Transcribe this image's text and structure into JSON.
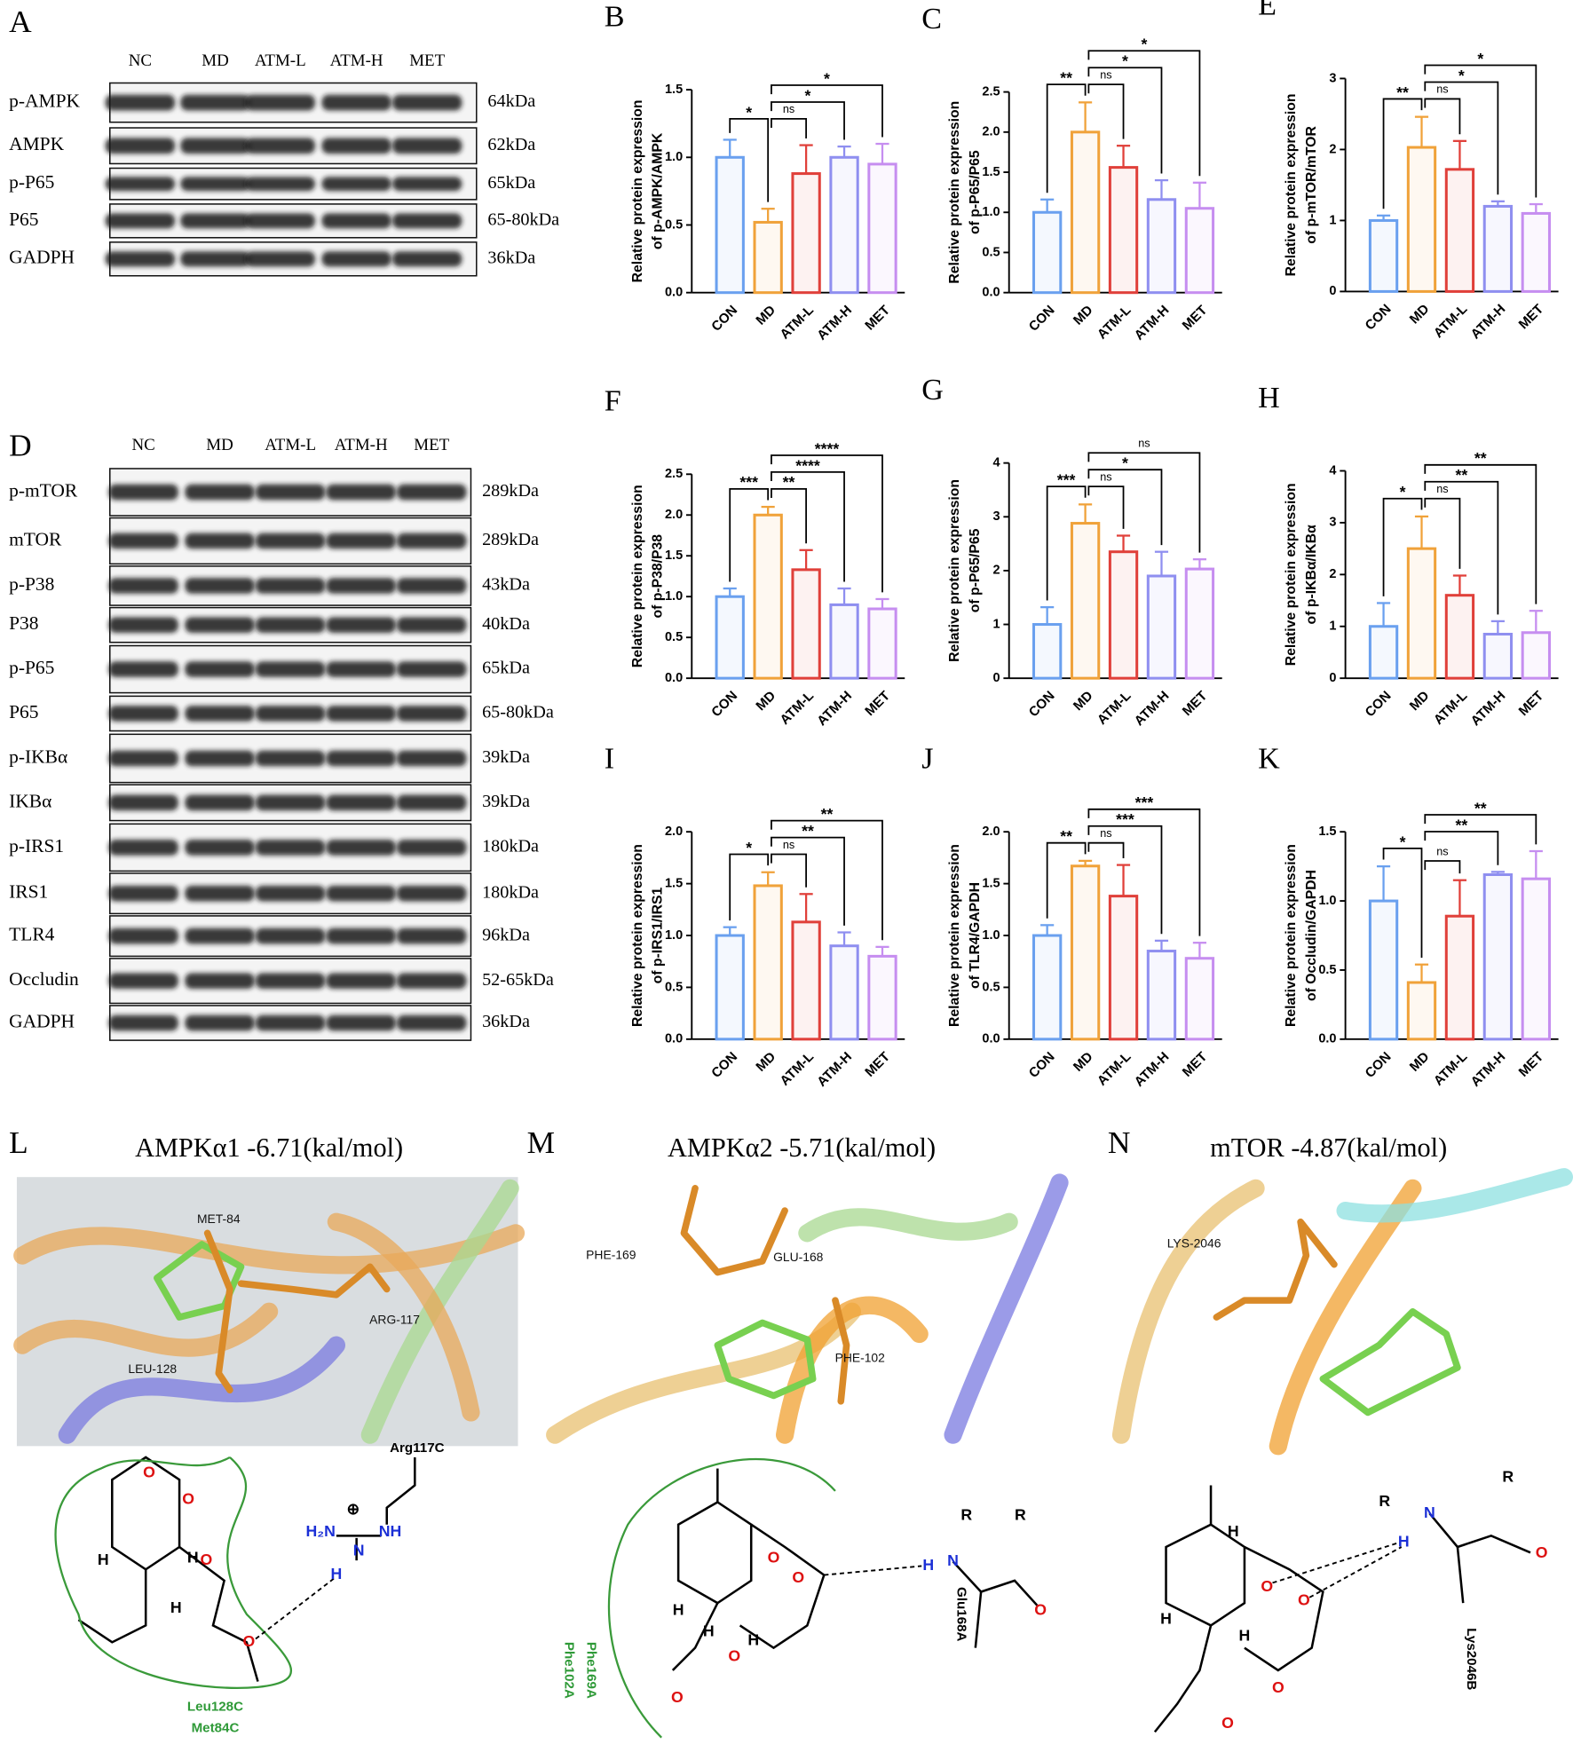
{
  "chart_data": [
    {
      "type": "bar",
      "label": "B",
      "ylabel": [
        "Relative protein expression",
        "of p-AMPK/AMPK"
      ],
      "categories": [
        "CON",
        "MD",
        "ATM-L",
        "ATM-H",
        "MET"
      ],
      "values": [
        1.0,
        0.52,
        0.88,
        1.0,
        0.95
      ],
      "errors": [
        0.13,
        0.1,
        0.21,
        0.08,
        0.15
      ],
      "colors": [
        "#6aa0ef",
        "#f0a23a",
        "#e0403a",
        "#8f8ff0",
        "#c68ef0"
      ],
      "ylim": [
        0,
        1.5
      ],
      "yticks": [
        {
          "value": 0,
          "label": "0.0"
        },
        0.5,
        {
          "value": 1,
          "label": "1.0"
        },
        1.5
      ],
      "comparisons": [
        {
          "pair": [
            "CON",
            "MD"
          ],
          "label": "*"
        },
        {
          "pair": [
            "MD",
            "ATM-L"
          ],
          "label": "ns"
        },
        {
          "pair": [
            "MD",
            "ATM-H"
          ],
          "label": "*"
        },
        {
          "pair": [
            "MD",
            "MET"
          ],
          "label": "*"
        }
      ]
    },
    {
      "type": "bar",
      "label": "C",
      "ylabel": [
        "Relative protein expression",
        "of p-P65/P65"
      ],
      "categories": [
        "CON",
        "MD",
        "ATM-L",
        "ATM-H",
        "MET"
      ],
      "values": [
        1.0,
        2.0,
        1.56,
        1.16,
        1.05
      ],
      "errors": [
        0.16,
        0.37,
        0.27,
        0.24,
        0.32
      ],
      "colors": [
        "#6aa0ef",
        "#f0a23a",
        "#e0403a",
        "#8f8ff0",
        "#c68ef0"
      ],
      "ylim": [
        0,
        2.5
      ],
      "yticks": [
        {
          "value": 0,
          "label": "0.0"
        },
        0.5,
        {
          "value": 1,
          "label": "1.0"
        },
        1.5,
        {
          "value": 2,
          "label": "2.0"
        },
        2.5
      ],
      "comparisons": [
        {
          "pair": [
            "CON",
            "MD"
          ],
          "label": "**"
        },
        {
          "pair": [
            "MD",
            "ATM-L"
          ],
          "label": "ns"
        },
        {
          "pair": [
            "MD",
            "ATM-H"
          ],
          "label": "*"
        },
        {
          "pair": [
            "MD",
            "MET"
          ],
          "label": "*"
        }
      ]
    },
    {
      "type": "bar",
      "label": "E",
      "ylabel": [
        "Relative protein expression",
        "of p-mTOR/mTOR"
      ],
      "categories": [
        "CON",
        "MD",
        "ATM-L",
        "ATM-H",
        "MET"
      ],
      "values": [
        1.0,
        2.03,
        1.72,
        1.2,
        1.1
      ],
      "errors": [
        0.07,
        0.43,
        0.4,
        0.07,
        0.13
      ],
      "colors": [
        "#6aa0ef",
        "#f0a23a",
        "#e0403a",
        "#8f8ff0",
        "#c68ef0"
      ],
      "ylim": [
        0,
        3
      ],
      "yticks": [
        0,
        1,
        2,
        3
      ],
      "comparisons": [
        {
          "pair": [
            "CON",
            "MD"
          ],
          "label": "**"
        },
        {
          "pair": [
            "MD",
            "ATM-L"
          ],
          "label": "ns"
        },
        {
          "pair": [
            "MD",
            "ATM-H"
          ],
          "label": "*"
        },
        {
          "pair": [
            "MD",
            "MET"
          ],
          "label": "*"
        }
      ]
    },
    {
      "type": "bar",
      "label": "F",
      "ylabel": [
        "Relative protein expression",
        "of p-P38/P38"
      ],
      "categories": [
        "CON",
        "MD",
        "ATM-L",
        "ATM-H",
        "MET"
      ],
      "values": [
        1.0,
        2.0,
        1.33,
        0.9,
        0.85
      ],
      "errors": [
        0.1,
        0.1,
        0.24,
        0.2,
        0.12
      ],
      "colors": [
        "#6aa0ef",
        "#f0a23a",
        "#e0403a",
        "#8f8ff0",
        "#c68ef0"
      ],
      "ylim": [
        0,
        2.5
      ],
      "yticks": [
        {
          "value": 0,
          "label": "0.0"
        },
        0.5,
        {
          "value": 1,
          "label": "1.0"
        },
        1.5,
        {
          "value": 2,
          "label": "2.0"
        },
        2.5
      ],
      "comparisons": [
        {
          "pair": [
            "CON",
            "MD"
          ],
          "label": "***"
        },
        {
          "pair": [
            "MD",
            "ATM-L"
          ],
          "label": "**"
        },
        {
          "pair": [
            "MD",
            "ATM-H"
          ],
          "label": "****"
        },
        {
          "pair": [
            "MD",
            "MET"
          ],
          "label": "****"
        }
      ]
    },
    {
      "type": "bar",
      "label": "G",
      "ylabel": [
        "Relative protein expression",
        "of p-P65/P65"
      ],
      "categories": [
        "CON",
        "MD",
        "ATM-L",
        "ATM-H",
        "MET"
      ],
      "values": [
        1.0,
        2.88,
        2.35,
        1.9,
        2.03
      ],
      "errors": [
        0.32,
        0.35,
        0.3,
        0.45,
        0.18
      ],
      "colors": [
        "#6aa0ef",
        "#f0a23a",
        "#e0403a",
        "#8f8ff0",
        "#c68ef0"
      ],
      "ylim": [
        0,
        4
      ],
      "yticks": [
        0,
        1,
        2,
        3,
        4
      ],
      "comparisons": [
        {
          "pair": [
            "CON",
            "MD"
          ],
          "label": "***"
        },
        {
          "pair": [
            "MD",
            "ATM-L"
          ],
          "label": "ns"
        },
        {
          "pair": [
            "MD",
            "ATM-H"
          ],
          "label": "*"
        },
        {
          "pair": [
            "MD",
            "MET"
          ],
          "label": "ns"
        }
      ]
    },
    {
      "type": "bar",
      "label": "H",
      "ylabel": [
        "Relative protein expression",
        "of p-IKBα/IKBα"
      ],
      "categories": [
        "CON",
        "MD",
        "ATM-L",
        "ATM-H",
        "MET"
      ],
      "values": [
        1.0,
        2.5,
        1.6,
        0.85,
        0.88
      ],
      "errors": [
        0.45,
        0.62,
        0.38,
        0.25,
        0.42
      ],
      "colors": [
        "#6aa0ef",
        "#f0a23a",
        "#e0403a",
        "#8f8ff0",
        "#c68ef0"
      ],
      "ylim": [
        0,
        4
      ],
      "yticks": [
        0,
        1,
        2,
        3,
        4
      ],
      "comparisons": [
        {
          "pair": [
            "CON",
            "MD"
          ],
          "label": "*"
        },
        {
          "pair": [
            "MD",
            "ATM-L"
          ],
          "label": "ns"
        },
        {
          "pair": [
            "MD",
            "ATM-H"
          ],
          "label": "**"
        },
        {
          "pair": [
            "MD",
            "MET"
          ],
          "label": "**"
        }
      ]
    },
    {
      "type": "bar",
      "label": "I",
      "ylabel": [
        "Relative protein expression",
        "of p-IRS1/IRS1"
      ],
      "categories": [
        "CON",
        "MD",
        "ATM-L",
        "ATM-H",
        "MET"
      ],
      "values": [
        1.0,
        1.48,
        1.13,
        0.9,
        0.8
      ],
      "errors": [
        0.08,
        0.13,
        0.27,
        0.13,
        0.09
      ],
      "colors": [
        "#6aa0ef",
        "#f0a23a",
        "#e0403a",
        "#8f8ff0",
        "#c68ef0"
      ],
      "ylim": [
        0,
        2
      ],
      "yticks": [
        {
          "value": 0,
          "label": "0.0"
        },
        0.5,
        {
          "value": 1,
          "label": "1.0"
        },
        1.5,
        {
          "value": 2,
          "label": "2.0"
        }
      ],
      "comparisons": [
        {
          "pair": [
            "CON",
            "MD"
          ],
          "label": "*"
        },
        {
          "pair": [
            "MD",
            "ATM-L"
          ],
          "label": "ns"
        },
        {
          "pair": [
            "MD",
            "ATM-H"
          ],
          "label": "**"
        },
        {
          "pair": [
            "MD",
            "MET"
          ],
          "label": "**"
        }
      ]
    },
    {
      "type": "bar",
      "label": "J",
      "ylabel": [
        "Relative protein expression",
        "of TLR4/GAPDH"
      ],
      "categories": [
        "CON",
        "MD",
        "ATM-L",
        "ATM-H",
        "MET"
      ],
      "values": [
        1.0,
        1.67,
        1.38,
        0.85,
        0.78
      ],
      "errors": [
        0.1,
        0.05,
        0.3,
        0.1,
        0.15
      ],
      "colors": [
        "#6aa0ef",
        "#f0a23a",
        "#e0403a",
        "#8f8ff0",
        "#c68ef0"
      ],
      "ylim": [
        0,
        2
      ],
      "yticks": [
        {
          "value": 0,
          "label": "0.0"
        },
        0.5,
        {
          "value": 1,
          "label": "1.0"
        },
        1.5,
        {
          "value": 2,
          "label": "2.0"
        }
      ],
      "comparisons": [
        {
          "pair": [
            "CON",
            "MD"
          ],
          "label": "**"
        },
        {
          "pair": [
            "MD",
            "ATM-L"
          ],
          "label": "ns"
        },
        {
          "pair": [
            "MD",
            "ATM-H"
          ],
          "label": "***"
        },
        {
          "pair": [
            "MD",
            "MET"
          ],
          "label": "***"
        }
      ]
    },
    {
      "type": "bar",
      "label": "K",
      "ylabel": [
        "Relative protein expression",
        "of Occludin/GAPDH"
      ],
      "categories": [
        "CON",
        "MD",
        "ATM-L",
        "ATM-H",
        "MET"
      ],
      "values": [
        1.0,
        0.41,
        0.89,
        1.19,
        1.16
      ],
      "errors": [
        0.25,
        0.13,
        0.26,
        0.02,
        0.2
      ],
      "colors": [
        "#6aa0ef",
        "#f0a23a",
        "#e0403a",
        "#8f8ff0",
        "#c68ef0"
      ],
      "ylim": [
        0,
        1.5
      ],
      "yticks": [
        {
          "value": 0,
          "label": "0.0"
        },
        0.5,
        {
          "value": 1,
          "label": "1.0"
        },
        1.5
      ],
      "comparisons": [
        {
          "pair": [
            "CON",
            "MD"
          ],
          "label": "*"
        },
        {
          "pair": [
            "MD",
            "ATM-L"
          ],
          "label": "ns"
        },
        {
          "pair": [
            "MD",
            "ATM-H"
          ],
          "label": "**"
        },
        {
          "pair": [
            "MD",
            "MET"
          ],
          "label": "**"
        }
      ]
    }
  ],
  "blots": [
    {
      "label": "A",
      "lanes": [
        "NC",
        "MD",
        "ATM-L",
        "ATM-H",
        "MET"
      ],
      "rows": [
        {
          "name": "p-AMPK",
          "size": "64kDa"
        },
        {
          "name": "AMPK",
          "size": "62kDa"
        },
        {
          "name": "p-P65",
          "size": "65kDa"
        },
        {
          "name": "P65",
          "size": "65-80kDa"
        },
        {
          "name": "GADPH",
          "size": "36kDa"
        }
      ]
    },
    {
      "label": "D",
      "lanes": [
        "NC",
        "MD",
        "ATM-L",
        "ATM-H",
        "MET"
      ],
      "rows": [
        {
          "name": "p-mTOR",
          "size": "289kDa"
        },
        {
          "name": "mTOR",
          "size": "289kDa"
        },
        {
          "name": "p-P38",
          "size": "43kDa"
        },
        {
          "name": "P38",
          "size": "40kDa"
        },
        {
          "name": "p-P65",
          "size": "65kDa"
        },
        {
          "name": "P65",
          "size": "65-80kDa"
        },
        {
          "name": "p-IKBα",
          "size": "39kDa"
        },
        {
          "name": "IKBα",
          "size": "39kDa"
        },
        {
          "name": "p-IRS1",
          "size": "180kDa"
        },
        {
          "name": "IRS1",
          "size": "180kDa"
        },
        {
          "name": "TLR4",
          "size": "96kDa"
        },
        {
          "name": "Occludin",
          "size": "52-65kDa"
        },
        {
          "name": "GADPH",
          "size": "36kDa"
        }
      ]
    }
  ],
  "docking": [
    {
      "label": "L",
      "title": "AMPKα1 -6.71(kal/mol)",
      "residues_3d": [
        "MET-84",
        "ARG-117",
        "LEU-128"
      ],
      "residues_2d": [
        "Arg117C",
        "Leu128C",
        "Met84C"
      ],
      "atoms": [
        "H₂N",
        "⊕",
        "NH",
        "N",
        "H",
        "H",
        "H",
        "H",
        "O",
        "O",
        "O",
        "O"
      ]
    },
    {
      "label": "M",
      "title": "AMPKα2 -5.71(kal/mol)",
      "residues_3d": [
        "PHE-169",
        "GLU-168",
        "PHE-102"
      ],
      "residues_2d": [
        "Phe169A",
        "Phe102A",
        "Glu168A"
      ],
      "atoms": [
        "H",
        "N",
        "R",
        "R",
        "O",
        "O",
        "O",
        "O",
        "O",
        "H",
        "H",
        "H"
      ]
    },
    {
      "label": "N",
      "title": "mTOR -4.87(kal/mol)",
      "residues_3d": [
        "LYS-2046"
      ],
      "residues_2d": [
        "Lys2046B"
      ],
      "atoms": [
        "R",
        "N",
        "H",
        "R",
        "O",
        "O",
        "O",
        "O",
        "O",
        "H",
        "H",
        "H"
      ]
    }
  ]
}
